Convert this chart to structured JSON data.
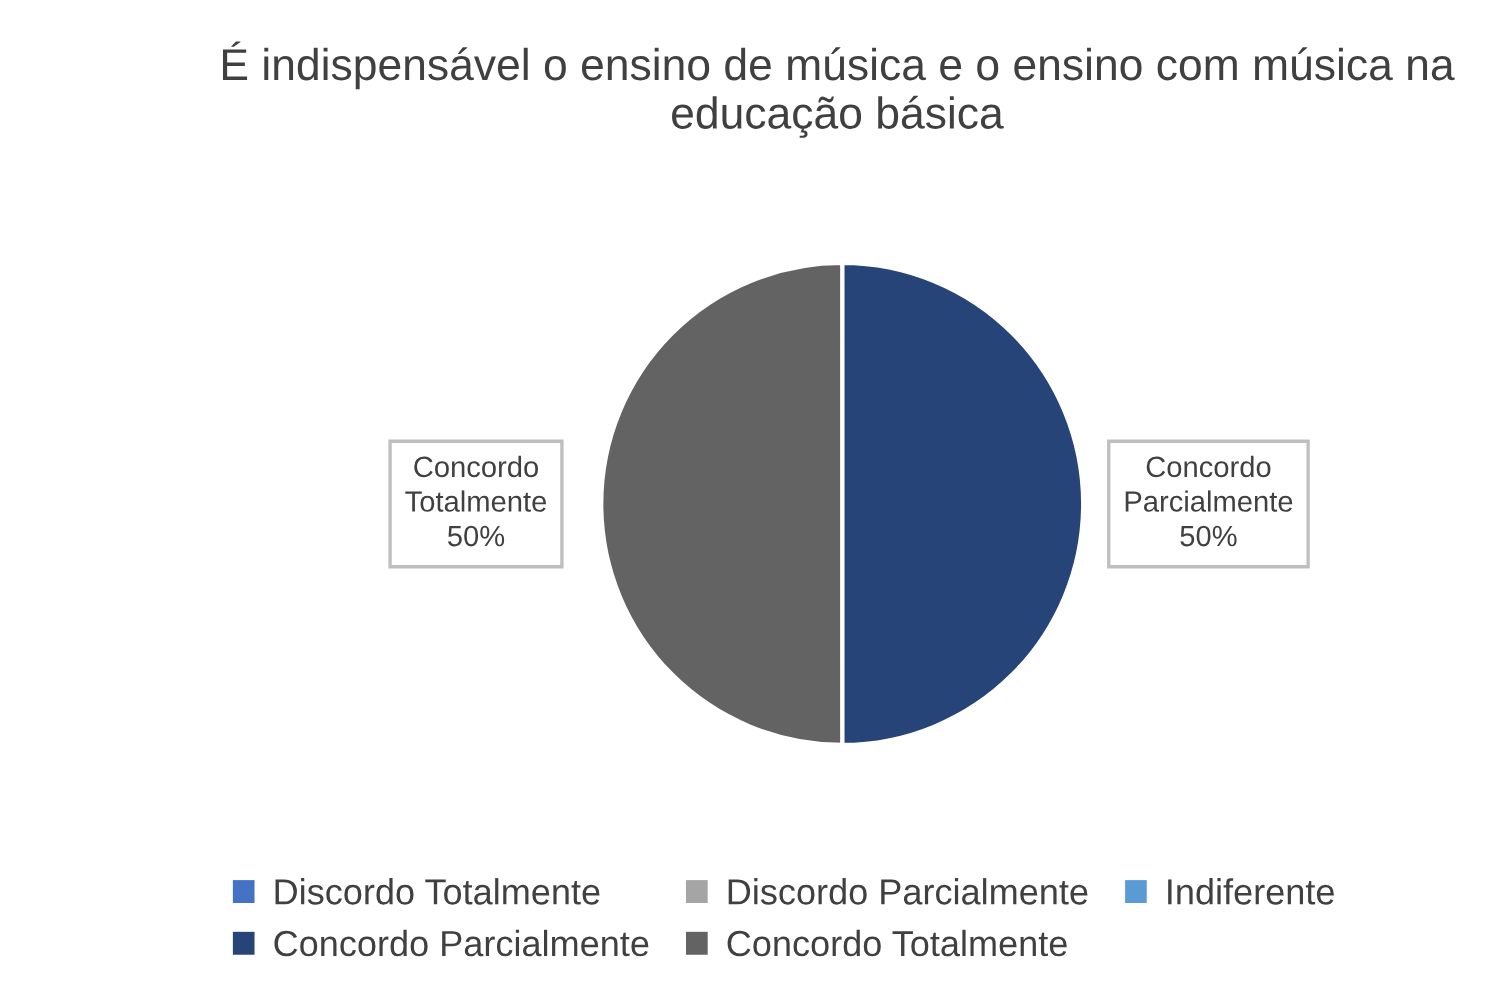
{
  "chart_data": {
    "type": "pie",
    "title": "É indispensável o ensino de música e o ensino com música na educação básica",
    "categories": [
      "Discordo Totalmente",
      "Discordo Parcialmente",
      "Indiferente",
      "Concordo Parcialmente",
      "Concordo Totalmente"
    ],
    "values": [
      0,
      0,
      0,
      50,
      50
    ],
    "colors": [
      "#4472c4",
      "#a5a5a5",
      "#5b9bd5",
      "#264478",
      "#636363"
    ],
    "value_labels": [
      null,
      null,
      null,
      "Concordo\nParcialmente\n50%",
      "Concordo\nTotalmente\n50%"
    ],
    "legend": "bottom"
  }
}
